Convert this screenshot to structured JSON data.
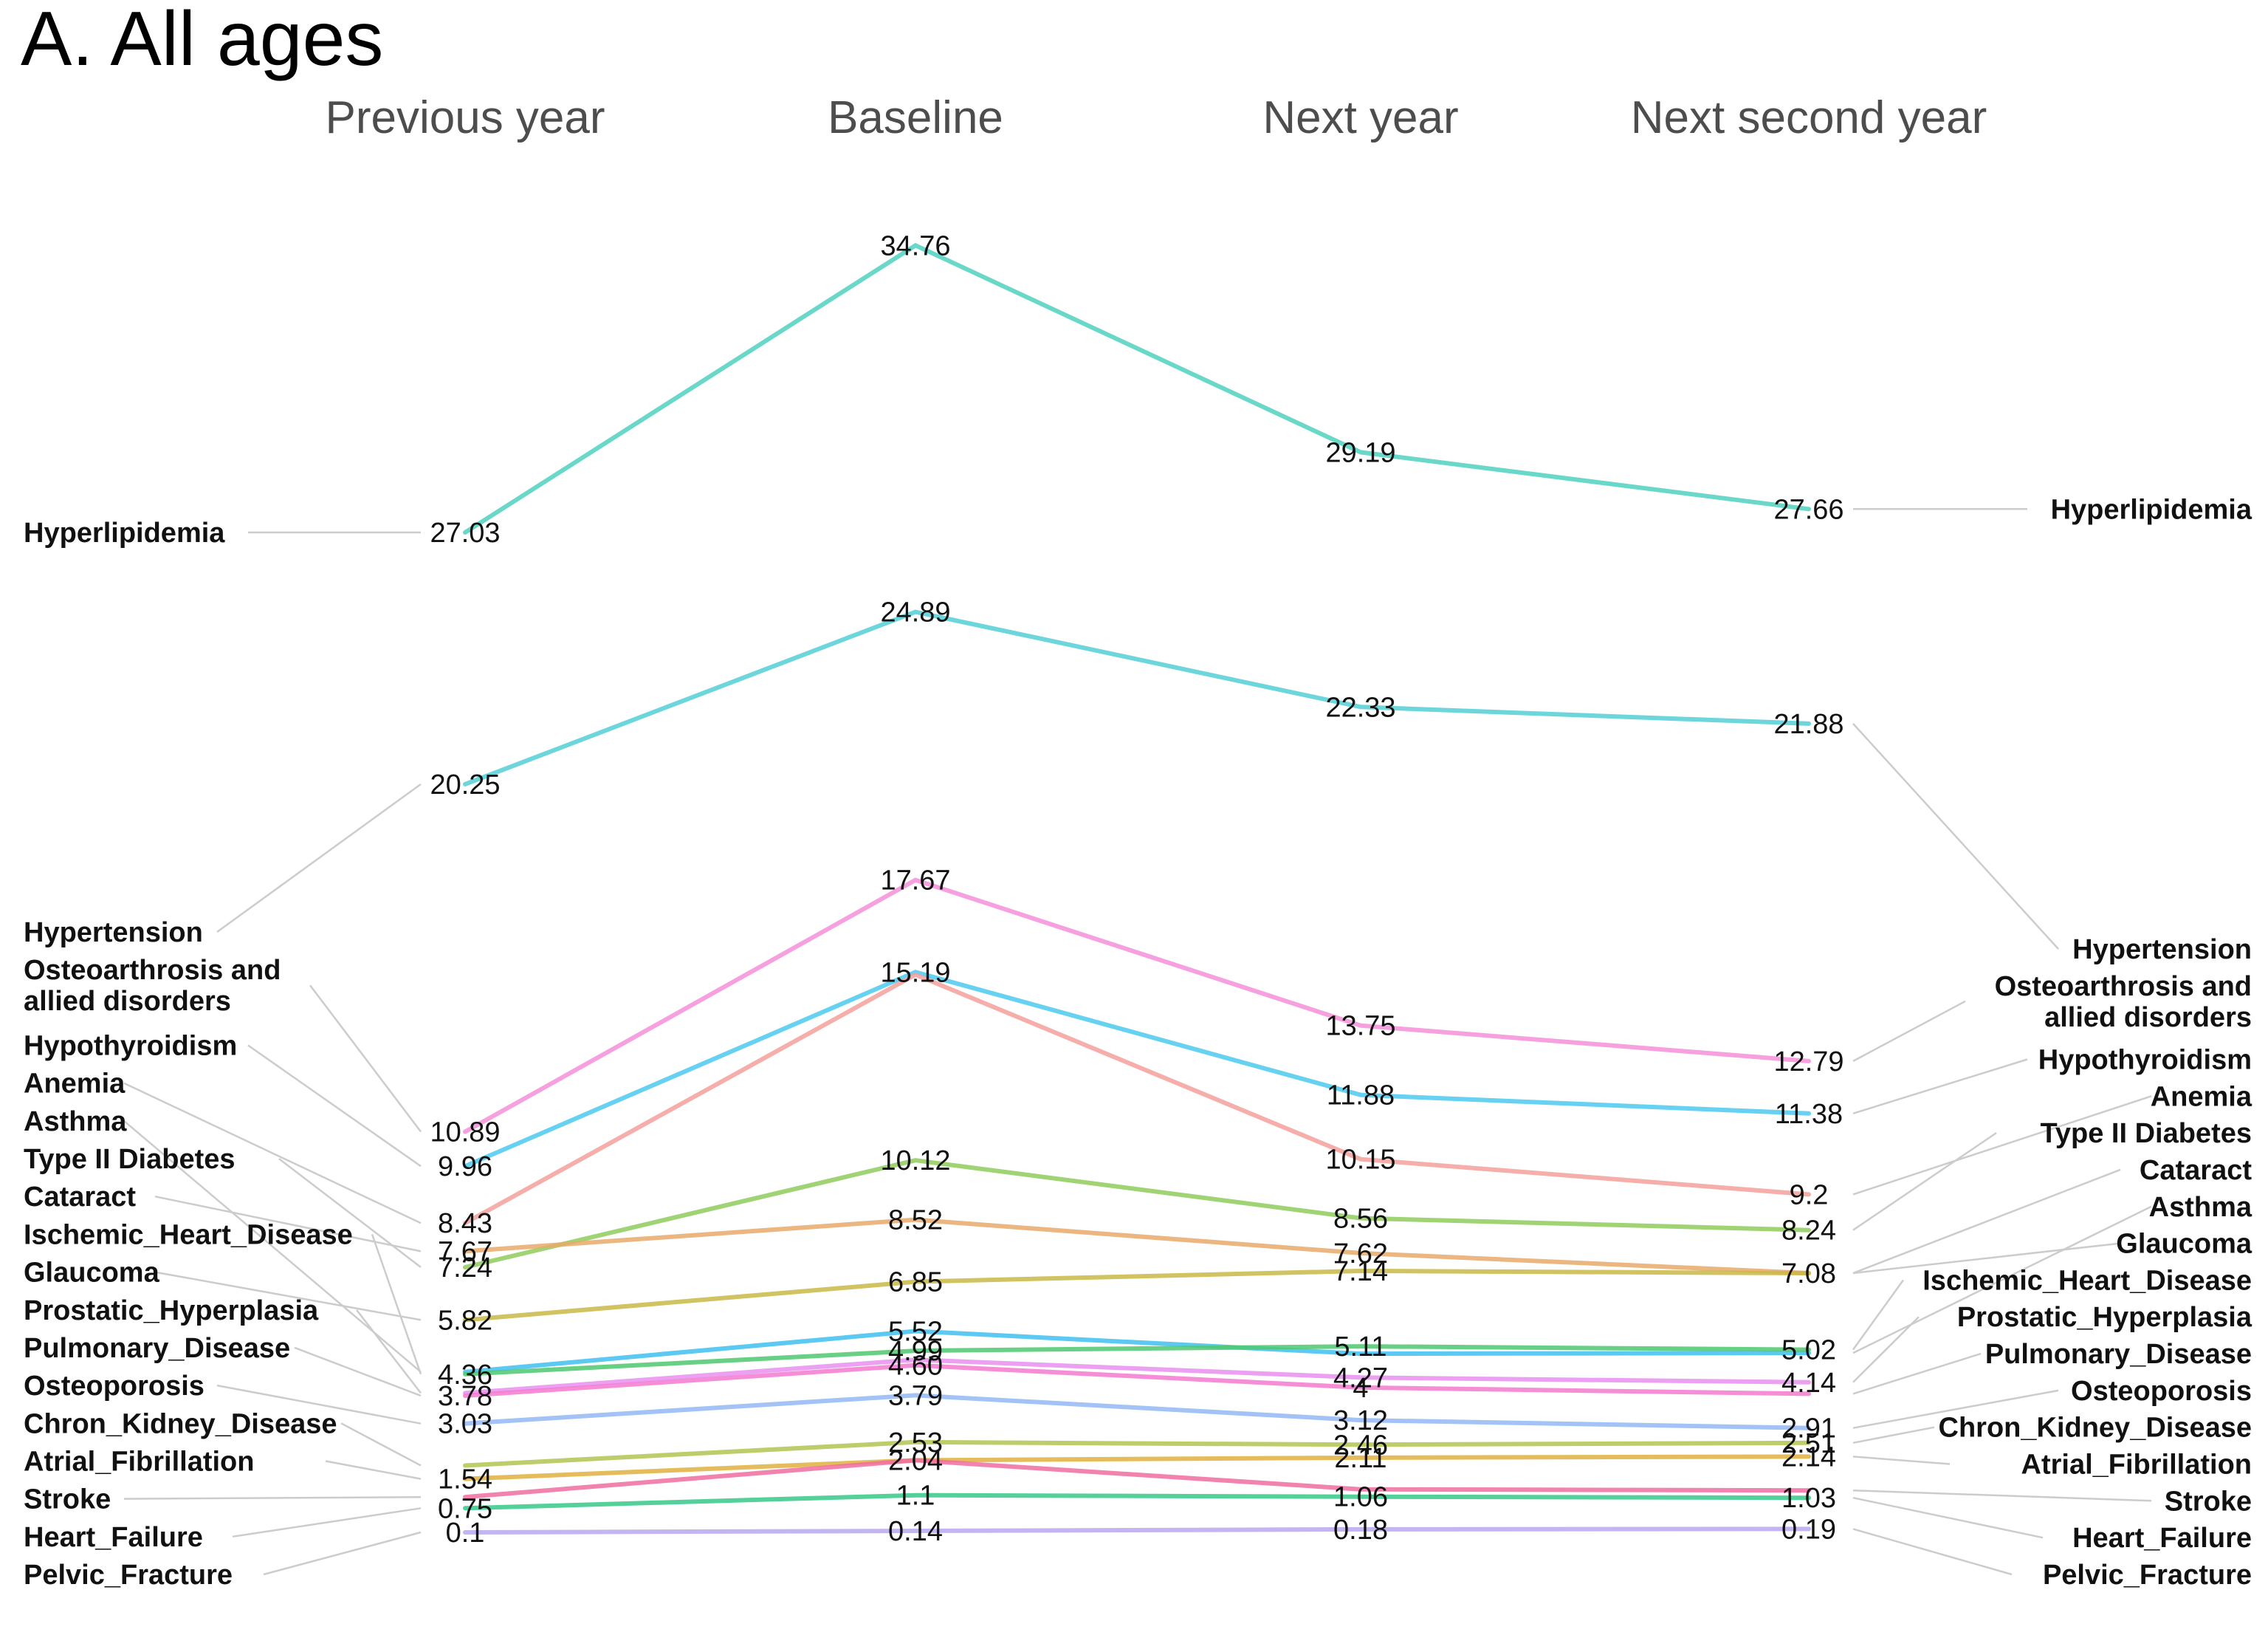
{
  "chart_data": {
    "type": "line",
    "title": "A. All ages",
    "x": [
      "Previous year",
      "Baseline",
      "Next year",
      "Next second year"
    ],
    "ylim": [
      0,
      36
    ],
    "grid": false,
    "legend": "none",
    "series": [
      {
        "name": "Hyperlipidemia",
        "values": [
          27.03,
          34.76,
          29.19,
          27.66
        ],
        "color": "#4fd1c0",
        "value_labels": [
          "27.03",
          "34.76",
          "29.19",
          "27.66"
        ]
      },
      {
        "name": "Hypertension",
        "values": [
          20.25,
          24.89,
          22.33,
          21.88
        ],
        "color": "#52cfd6",
        "value_labels": [
          "20.25",
          "24.89",
          "22.33",
          "21.88"
        ]
      },
      {
        "name": "Osteoarthrosis and allied disorders",
        "values": [
          10.89,
          17.67,
          13.75,
          12.79
        ],
        "color": "#f48fd9",
        "value_labels": [
          "10.89",
          "17.67",
          "13.75",
          "12.79"
        ]
      },
      {
        "name": "Hypothyroidism",
        "values": [
          9.96,
          15.19,
          11.88,
          11.38
        ],
        "color": "#4cc9f0",
        "value_labels": [
          "9.96",
          "15.19",
          "11.88",
          "11.38"
        ]
      },
      {
        "name": "Anemia",
        "values": [
          8.43,
          15.12,
          10.15,
          9.2
        ],
        "color": "#f4a09c",
        "value_labels": [
          "8.43",
          "",
          "10.15",
          "9.2"
        ]
      },
      {
        "name": "Type II Diabetes",
        "values": [
          7.24,
          10.12,
          8.56,
          8.24
        ],
        "color": "#8fcb5a",
        "value_labels": [
          "7.24",
          "10.12",
          "8.56",
          "8.24"
        ]
      },
      {
        "name": "Cataract",
        "values": [
          7.67,
          8.52,
          7.62,
          7.08
        ],
        "color": "#e9a96b",
        "value_labels": [
          "7.67",
          "8.52",
          "7.62",
          "7.08"
        ]
      },
      {
        "name": "Glaucoma",
        "values": [
          5.82,
          6.85,
          7.14,
          7.08
        ],
        "color": "#c9b847",
        "value_labels": [
          "5.82",
          "6.85",
          "7.14",
          ""
        ]
      },
      {
        "name": "Asthma",
        "values": [
          4.42,
          5.52,
          4.91,
          4.93
        ],
        "color": "#40bff0",
        "value_labels": [
          "",
          "5.52",
          "",
          ""
        ]
      },
      {
        "name": "Ischemic_Heart_Disease",
        "values": [
          4.36,
          4.99,
          5.11,
          5.02
        ],
        "color": "#4cc86e",
        "value_labels": [
          "4.36",
          "4.99",
          "5.11",
          "5.02"
        ]
      },
      {
        "name": "Prostatic_Hyperplasia",
        "values": [
          3.85,
          4.75,
          4.27,
          4.14
        ],
        "color": "#e98ff0",
        "value_labels": [
          "",
          "",
          "4.27",
          "4.14"
        ]
      },
      {
        "name": "Pulmonary_Disease",
        "values": [
          3.78,
          4.6,
          4.0,
          3.83
        ],
        "color": "#f47ad0",
        "value_labels": [
          "3.78",
          "4.60",
          "4",
          ""
        ]
      },
      {
        "name": "Osteoporosis",
        "values": [
          3.03,
          3.79,
          3.12,
          2.91
        ],
        "color": "#93b8f4",
        "value_labels": [
          "3.03",
          "3.79",
          "3.12",
          "2.91"
        ]
      },
      {
        "name": "Chron_Kidney_Disease",
        "values": [
          1.9,
          2.53,
          2.46,
          2.51
        ],
        "color": "#b0c650",
        "value_labels": [
          "",
          "2.53",
          "2.46",
          "2.51"
        ]
      },
      {
        "name": "Atrial_Fibrillation",
        "values": [
          1.54,
          2.04,
          2.11,
          2.14
        ],
        "color": "#e0b040",
        "value_labels": [
          "1.54",
          "2.04",
          "2.11",
          "2.14"
        ]
      },
      {
        "name": "Stroke",
        "values": [
          1.05,
          2.04,
          1.26,
          1.23
        ],
        "color": "#f06ca0",
        "value_labels": [
          "",
          "",
          "",
          ""
        ]
      },
      {
        "name": "Heart_Failure",
        "values": [
          0.75,
          1.1,
          1.06,
          1.03
        ],
        "color": "#36c88a",
        "value_labels": [
          "0.75",
          "1.1",
          "1.06",
          "1.03"
        ]
      },
      {
        "name": "Pelvic_Fracture",
        "values": [
          0.1,
          0.14,
          0.18,
          0.19
        ],
        "color": "#b8a8f0",
        "value_labels": [
          "0.1",
          "0.14",
          "0.18",
          "0.19"
        ]
      }
    ],
    "left_labels": [
      "Hyperlipidemia",
      "Hypertension",
      "Osteoarthrosis and\nallied disorders",
      "Hypothyroidism",
      "Anemia",
      "Asthma",
      "Type II Diabetes",
      "Cataract",
      "Ischemic_Heart_Disease",
      "Glaucoma",
      "Prostatic_Hyperplasia",
      "Pulmonary_Disease",
      "Osteoporosis",
      "Chron_Kidney_Disease",
      "Atrial_Fibrillation",
      "Stroke",
      "Heart_Failure",
      "Pelvic_Fracture"
    ],
    "right_labels": [
      "Hyperlipidemia",
      "Hypertension",
      "Osteoarthrosis and\nallied disorders",
      "Hypothyroidism",
      "Anemia",
      "Type II Diabetes",
      "Cataract",
      "Asthma",
      "Glaucoma",
      "Ischemic_Heart_Disease",
      "Prostatic_Hyperplasia",
      "Pulmonary_Disease",
      "Osteoporosis",
      "Chron_Kidney_Disease",
      "Atrial_Fibrillation",
      "Stroke",
      "Heart_Failure",
      "Pelvic_Fracture"
    ]
  }
}
